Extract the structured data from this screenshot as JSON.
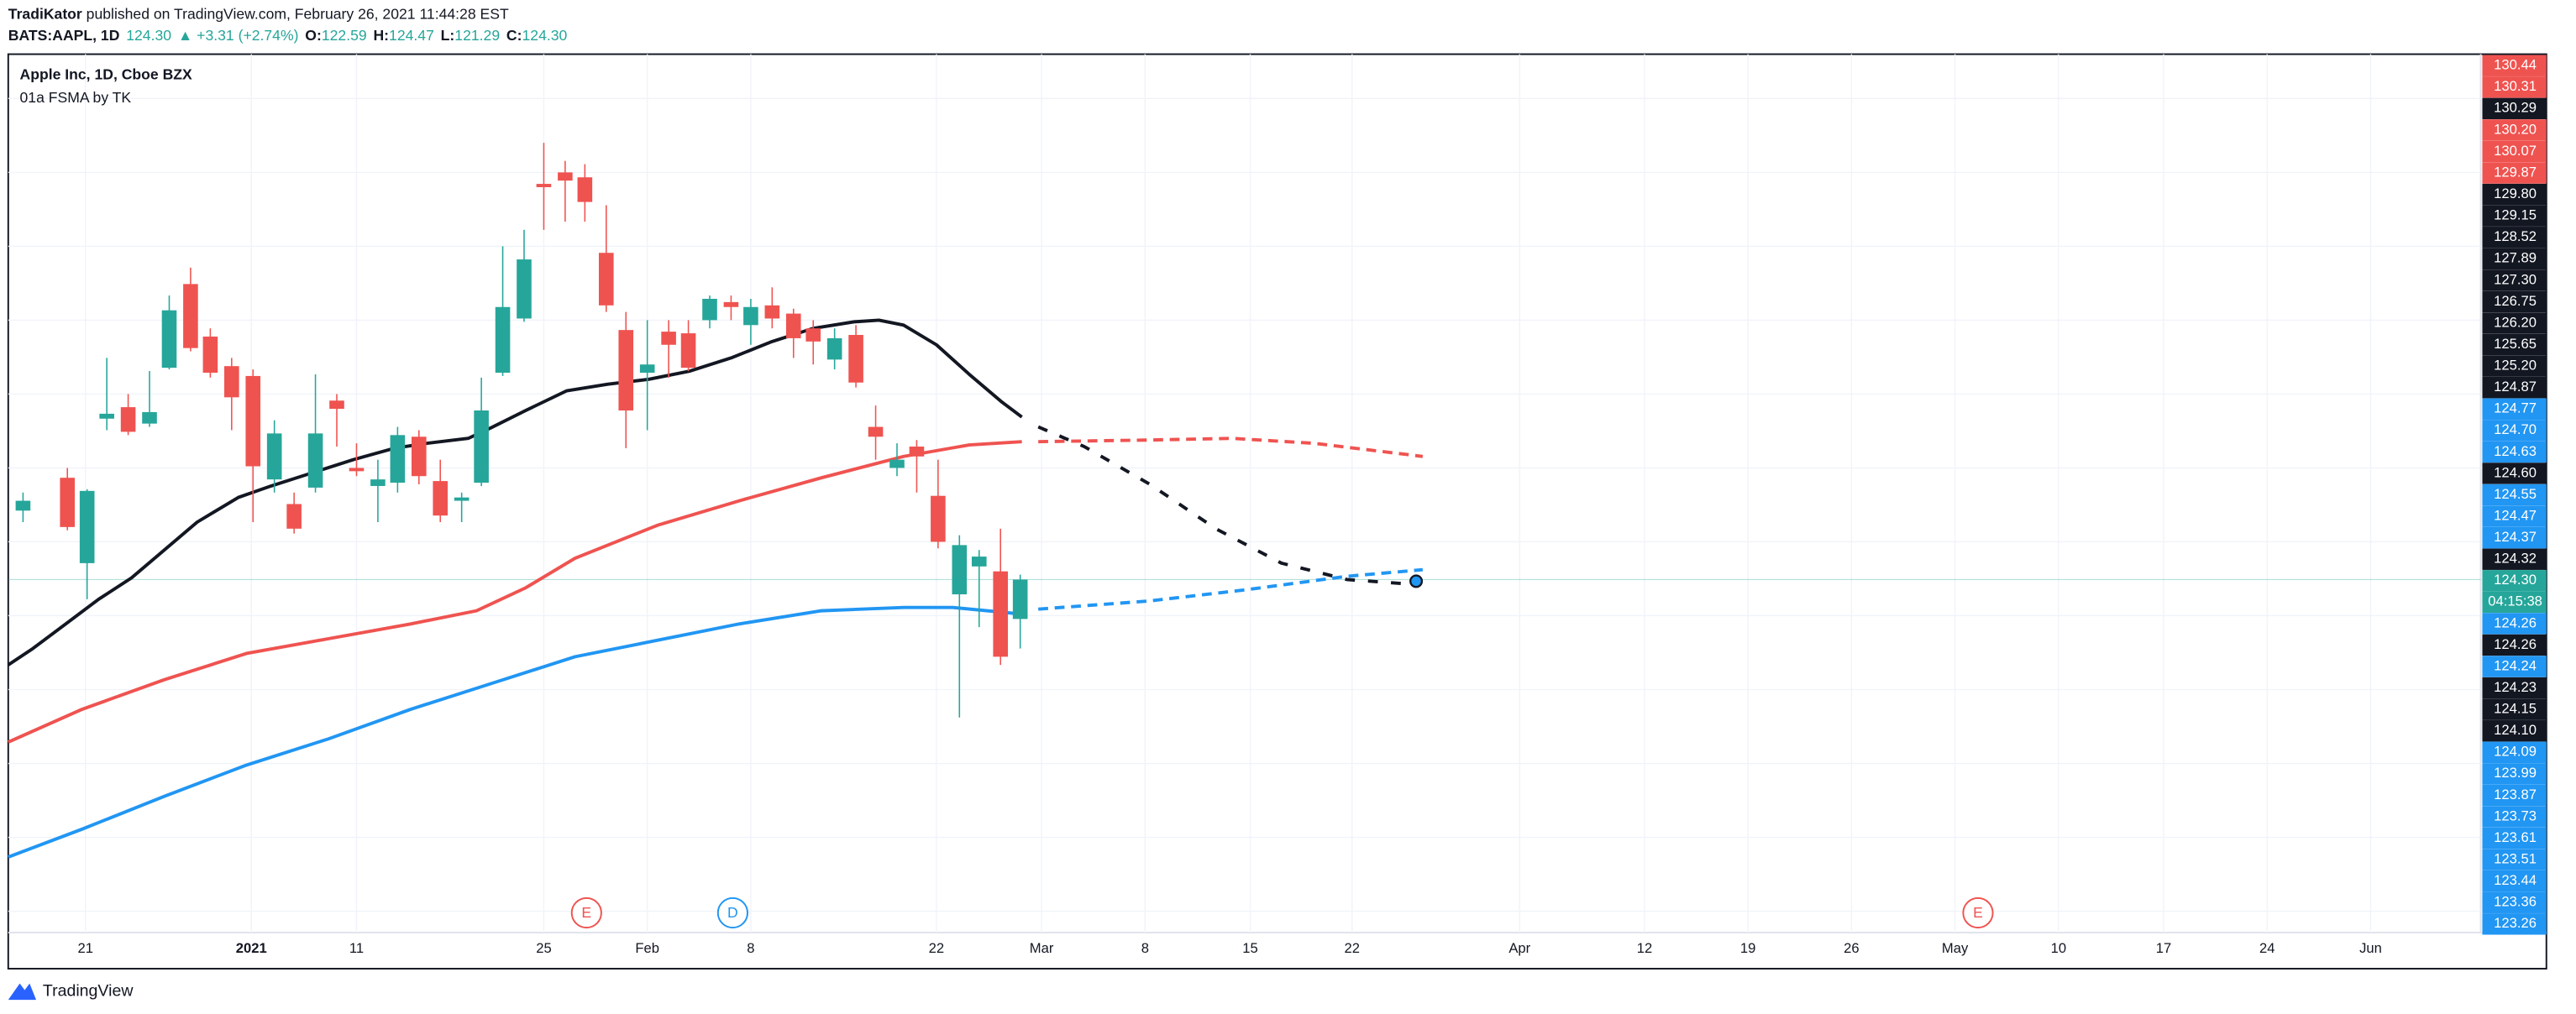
{
  "header": {
    "author": "TradiKator",
    "published": " published on TradingView.com, February 26, 2021 11:44:28 EST"
  },
  "quote": {
    "symbol": "BATS:AAPL, 1D",
    "last": "124.30",
    "change": "▲ +3.31 (+2.74%)",
    "ohlc": [
      {
        "key": "O:",
        "value": "122.59"
      },
      {
        "key": "H:",
        "value": "124.47"
      },
      {
        "key": "L:",
        "value": "121.29"
      },
      {
        "key": "C:",
        "value": "124.30"
      }
    ]
  },
  "legend": {
    "title": "Apple Inc, 1D, Cboe BZX",
    "indicator": "01a FSMA by TK"
  },
  "price_scale": {
    "labels": [
      {
        "text": "130.44",
        "color": "#ef5350"
      },
      {
        "text": "130.31",
        "color": "#ef5350"
      },
      {
        "text": "130.29",
        "color": "#131722"
      },
      {
        "text": "130.20",
        "color": "#ef5350"
      },
      {
        "text": "130.07",
        "color": "#ef5350"
      },
      {
        "text": "129.87",
        "color": "#ef5350"
      },
      {
        "text": "129.80",
        "color": "#131722"
      },
      {
        "text": "129.15",
        "color": "#131722"
      },
      {
        "text": "128.52",
        "color": "#131722"
      },
      {
        "text": "127.89",
        "color": "#131722"
      },
      {
        "text": "127.30",
        "color": "#131722"
      },
      {
        "text": "126.75",
        "color": "#131722"
      },
      {
        "text": "126.20",
        "color": "#131722"
      },
      {
        "text": "125.65",
        "color": "#131722"
      },
      {
        "text": "125.20",
        "color": "#131722"
      },
      {
        "text": "124.87",
        "color": "#131722"
      },
      {
        "text": "124.77",
        "color": "#2196f3"
      },
      {
        "text": "124.70",
        "color": "#2196f3"
      },
      {
        "text": "124.63",
        "color": "#2196f3"
      },
      {
        "text": "124.60",
        "color": "#131722"
      },
      {
        "text": "124.55",
        "color": "#2196f3"
      },
      {
        "text": "124.47",
        "color": "#2196f3"
      },
      {
        "text": "124.37",
        "color": "#2196f3"
      },
      {
        "text": "124.32",
        "color": "#131722"
      },
      {
        "text": "124.30",
        "color": "#26a69a"
      },
      {
        "text": "04:15:38",
        "color": "#26a69a"
      },
      {
        "text": "124.26",
        "color": "#2196f3"
      },
      {
        "text": "124.26",
        "color": "#131722"
      },
      {
        "text": "124.24",
        "color": "#2196f3"
      },
      {
        "text": "124.23",
        "color": "#131722"
      },
      {
        "text": "124.15",
        "color": "#131722"
      },
      {
        "text": "124.10",
        "color": "#131722"
      },
      {
        "text": "124.09",
        "color": "#2196f3"
      },
      {
        "text": "123.99",
        "color": "#2196f3"
      },
      {
        "text": "123.87",
        "color": "#2196f3"
      },
      {
        "text": "123.73",
        "color": "#2196f3"
      },
      {
        "text": "123.61",
        "color": "#2196f3"
      },
      {
        "text": "123.51",
        "color": "#2196f3"
      },
      {
        "text": "123.44",
        "color": "#2196f3"
      },
      {
        "text": "123.36",
        "color": "#2196f3"
      },
      {
        "text": "123.26",
        "color": "#2196f3"
      }
    ]
  },
  "time_scale": {
    "labels": [
      "21",
      "2021",
      "11",
      "25",
      "Feb",
      "8",
      "22",
      "Mar",
      "8",
      "15",
      "22",
      "Apr",
      "12",
      "19",
      "26",
      "May",
      "10",
      "17",
      "24",
      "Jun"
    ]
  },
  "events": [
    {
      "text": "E",
      "color": "#ef5350"
    },
    {
      "text": "D",
      "color": "#2196f3"
    },
    {
      "text": "E",
      "color": "#ef5350"
    }
  ],
  "footer": {
    "brand": "TradingView"
  }
}
